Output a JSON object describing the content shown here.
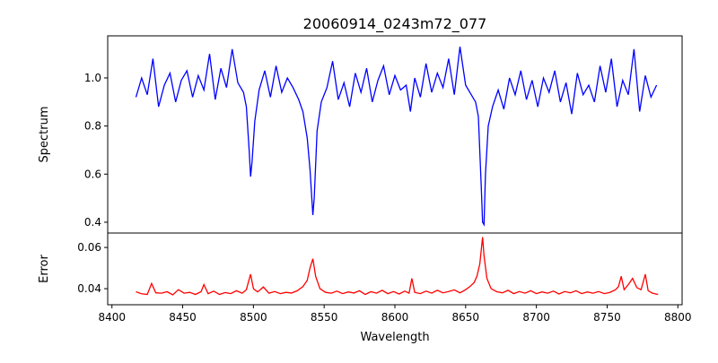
{
  "chart_data": [
    {
      "type": "line",
      "title": "20060914_0243m72_077",
      "xlabel": "",
      "ylabel": "Spectrum",
      "xlim": [
        8397,
        8803
      ],
      "ylim": [
        0.355,
        1.175
      ],
      "yticks": [
        0.4,
        0.6,
        0.8,
        1.0
      ],
      "ytick_labels": [
        "0.4",
        "0.6",
        "0.8",
        "1.0"
      ],
      "grid": false,
      "color": "#0000ff",
      "x": [
        8417,
        8421,
        8425,
        8429,
        8433,
        8437,
        8441,
        8445,
        8449,
        8453,
        8457,
        8461,
        8465,
        8469,
        8473,
        8477,
        8481,
        8485,
        8489,
        8493,
        8495,
        8497,
        8498,
        8499,
        8501,
        8504,
        8508,
        8512,
        8516,
        8520,
        8524,
        8528,
        8532,
        8535,
        8538,
        8540,
        8542,
        8543,
        8545,
        8548,
        8552,
        8556,
        8560,
        8564,
        8568,
        8572,
        8576,
        8580,
        8584,
        8588,
        8592,
        8596,
        8600,
        8604,
        8608,
        8611,
        8614,
        8618,
        8622,
        8626,
        8630,
        8634,
        8638,
        8642,
        8646,
        8650,
        8654,
        8657,
        8659,
        8661,
        8662,
        8663,
        8664,
        8666,
        8669,
        8673,
        8677,
        8681,
        8685,
        8689,
        8693,
        8697,
        8701,
        8705,
        8709,
        8713,
        8717,
        8721,
        8725,
        8729,
        8733,
        8737,
        8741,
        8745,
        8749,
        8753,
        8757,
        8761,
        8765,
        8769,
        8773,
        8777,
        8781,
        8785
      ],
      "y": [
        0.92,
        1.0,
        0.93,
        1.08,
        0.88,
        0.97,
        1.02,
        0.9,
        0.99,
        1.03,
        0.92,
        1.01,
        0.95,
        1.1,
        0.91,
        1.04,
        0.96,
        1.12,
        0.98,
        0.94,
        0.88,
        0.7,
        0.59,
        0.65,
        0.82,
        0.95,
        1.03,
        0.92,
        1.05,
        0.94,
        1.0,
        0.96,
        0.91,
        0.86,
        0.75,
        0.62,
        0.43,
        0.5,
        0.78,
        0.9,
        0.96,
        1.07,
        0.91,
        0.98,
        0.88,
        1.02,
        0.94,
        1.04,
        0.9,
        0.99,
        1.05,
        0.93,
        1.01,
        0.95,
        0.97,
        0.86,
        1.0,
        0.92,
        1.06,
        0.94,
        1.02,
        0.96,
        1.08,
        0.93,
        1.13,
        0.97,
        0.93,
        0.9,
        0.84,
        0.55,
        0.4,
        0.39,
        0.6,
        0.8,
        0.88,
        0.95,
        0.87,
        1.0,
        0.93,
        1.03,
        0.91,
        0.99,
        0.88,
        1.0,
        0.94,
        1.03,
        0.9,
        0.98,
        0.85,
        1.02,
        0.93,
        0.97,
        0.9,
        1.05,
        0.94,
        1.08,
        0.88,
        0.99,
        0.93,
        1.12,
        0.86,
        1.01,
        0.92,
        0.97
      ]
    },
    {
      "type": "line",
      "title": "",
      "xlabel": "Wavelength",
      "ylabel": "Error",
      "xlim": [
        8397,
        8803
      ],
      "ylim": [
        0.0322,
        0.067
      ],
      "xticks": [
        8400,
        8450,
        8500,
        8550,
        8600,
        8650,
        8700,
        8750,
        8800
      ],
      "xtick_labels": [
        "8400",
        "8450",
        "8500",
        "8550",
        "8600",
        "8650",
        "8700",
        "8750",
        "8800"
      ],
      "yticks": [
        0.04,
        0.06
      ],
      "ytick_labels": [
        "0.04",
        "0.06"
      ],
      "grid": false,
      "color": "#ff0000",
      "x": [
        8417,
        8421,
        8425,
        8428,
        8431,
        8435,
        8439,
        8443,
        8447,
        8451,
        8455,
        8459,
        8463,
        8465,
        8468,
        8472,
        8476,
        8480,
        8484,
        8488,
        8492,
        8495,
        8497,
        8498,
        8500,
        8503,
        8507,
        8511,
        8515,
        8519,
        8523,
        8527,
        8531,
        8535,
        8538,
        8540,
        8542,
        8544,
        8547,
        8551,
        8555,
        8559,
        8563,
        8567,
        8571,
        8575,
        8579,
        8583,
        8587,
        8591,
        8595,
        8599,
        8603,
        8607,
        8610,
        8612,
        8614,
        8618,
        8622,
        8626,
        8630,
        8634,
        8638,
        8642,
        8646,
        8650,
        8653,
        8656,
        8658,
        8660,
        8662,
        8663,
        8665,
        8668,
        8672,
        8676,
        8680,
        8684,
        8688,
        8692,
        8696,
        8700,
        8704,
        8708,
        8712,
        8716,
        8720,
        8724,
        8728,
        8732,
        8736,
        8740,
        8744,
        8748,
        8752,
        8756,
        8758,
        8760,
        8762,
        8765,
        8768,
        8771,
        8774,
        8777,
        8779,
        8782,
        8786
      ],
      "y": [
        0.0385,
        0.0375,
        0.0372,
        0.0425,
        0.038,
        0.0378,
        0.0385,
        0.037,
        0.0395,
        0.0378,
        0.0382,
        0.0372,
        0.0385,
        0.042,
        0.0376,
        0.0388,
        0.0372,
        0.0381,
        0.0376,
        0.039,
        0.0378,
        0.0395,
        0.0445,
        0.047,
        0.04,
        0.0384,
        0.0408,
        0.0378,
        0.0386,
        0.0376,
        0.0382,
        0.0379,
        0.039,
        0.041,
        0.044,
        0.05,
        0.0545,
        0.046,
        0.04,
        0.0382,
        0.0378,
        0.0388,
        0.0376,
        0.0384,
        0.0379,
        0.039,
        0.0372,
        0.0385,
        0.0378,
        0.0392,
        0.0376,
        0.0386,
        0.0374,
        0.0388,
        0.0378,
        0.045,
        0.0382,
        0.0376,
        0.0388,
        0.0378,
        0.0392,
        0.038,
        0.0386,
        0.0394,
        0.038,
        0.0395,
        0.041,
        0.043,
        0.046,
        0.052,
        0.065,
        0.056,
        0.045,
        0.04,
        0.0385,
        0.038,
        0.0392,
        0.0376,
        0.0386,
        0.0378,
        0.039,
        0.0376,
        0.0384,
        0.0378,
        0.0388,
        0.0374,
        0.0386,
        0.038,
        0.039,
        0.0376,
        0.0384,
        0.0378,
        0.0386,
        0.0376,
        0.0382,
        0.0395,
        0.041,
        0.046,
        0.0395,
        0.042,
        0.045,
        0.0405,
        0.0395,
        0.047,
        0.039,
        0.0378,
        0.0372
      ]
    }
  ]
}
